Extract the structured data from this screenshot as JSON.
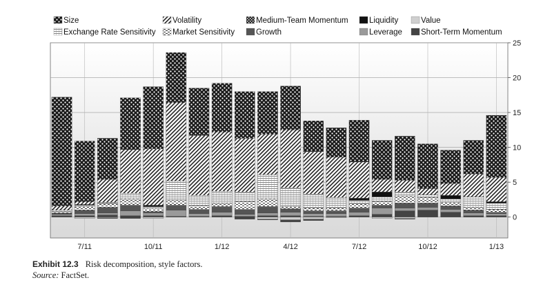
{
  "chart_data": {
    "type": "bar",
    "stacked": true,
    "categories": [
      "Jun 11",
      "Jul 11",
      "Aug 11",
      "Sep 11",
      "Oct 11",
      "Nov 11",
      "Dec 11",
      "Jan 12",
      "Feb 12",
      "Mar 12",
      "Apr 12",
      "May 12",
      "Jun 12",
      "Jul 12",
      "Aug 12",
      "Sep 12",
      "Oct 12",
      "Nov 12",
      "Dec 12",
      "Jan 13"
    ],
    "x_tick_labels": [
      {
        "index": 1,
        "label": "7/11"
      },
      {
        "index": 4,
        "label": "10/11"
      },
      {
        "index": 7,
        "label": "1/12"
      },
      {
        "index": 10,
        "label": "4/12"
      },
      {
        "index": 13,
        "label": "7/12"
      },
      {
        "index": 16,
        "label": "10/12"
      },
      {
        "index": 19,
        "label": "1/13"
      }
    ],
    "ylim": [
      -3,
      25
    ],
    "y_ticks": [
      0,
      5,
      10,
      15,
      20,
      25
    ],
    "y_axis_side": "right",
    "grid": true,
    "legend_position": "top",
    "series": [
      {
        "name": "Size",
        "pattern": "size",
        "values": [
          15.6,
          8.7,
          5.9,
          7.4,
          8.9,
          7.2,
          6.8,
          7.0,
          6.7,
          6.1,
          6.3,
          4.4,
          4.2,
          6.0,
          5.6,
          6.3,
          6.4,
          4.8,
          4.8,
          8.9
        ]
      },
      {
        "name": "Volatility",
        "pattern": "volatility",
        "values": [
          0.6,
          0.4,
          3.3,
          6.3,
          8.1,
          11.2,
          8.6,
          8.5,
          7.7,
          5.8,
          8.3,
          6.1,
          5.8,
          5.2,
          1.8,
          1.7,
          0.9,
          1.7,
          3.3,
          3.5
        ]
      },
      {
        "name": "Medium-Term Momentum",
        "pattern": "medmom",
        "values": [
          0,
          0,
          0,
          0,
          0,
          0,
          0,
          0,
          0,
          0,
          0,
          0,
          0,
          0,
          0,
          0,
          0,
          0,
          0,
          0
        ]
      },
      {
        "name": "Liquidity",
        "pattern": "liquidity",
        "values": [
          0,
          0.1,
          0,
          0,
          0.2,
          0,
          0,
          0,
          0,
          0,
          0,
          0,
          0,
          0.3,
          0.7,
          0,
          0,
          0.5,
          0,
          0.2
        ]
      },
      {
        "name": "Value",
        "pattern": "value",
        "values": [
          0,
          0,
          0,
          0,
          0,
          0,
          0,
          0,
          0,
          0,
          0,
          0,
          0,
          0,
          0,
          0,
          0,
          0,
          0,
          0
        ]
      },
      {
        "name": "Exchange Rate Sensitivity",
        "pattern": "fx",
        "values": [
          0.2,
          0.2,
          0.2,
          0.8,
          0.3,
          2.8,
          1.5,
          1.7,
          1.4,
          3.5,
          2.7,
          2.0,
          1.5,
          0.5,
          0.7,
          0.6,
          0.4,
          0.5,
          1.5,
          0.9
        ]
      },
      {
        "name": "Market Sensitivity",
        "pattern": "mktsens",
        "values": [
          0.2,
          0.5,
          0.5,
          0.9,
          0.4,
          0.7,
          0.5,
          0.5,
          1.1,
          1.1,
          0.3,
          0.4,
          0.4,
          0.6,
          0.5,
          1.0,
          0.8,
          0.5,
          0.4,
          0.4
        ]
      },
      {
        "name": "Growth",
        "pattern": "growth",
        "values": [
          0.2,
          0.5,
          0.8,
          0.8,
          0.2,
          0.7,
          0.6,
          0.8,
          0.7,
          0.9,
          0.5,
          0.4,
          0.4,
          0.6,
          0.4,
          0.7,
          0.6,
          0.5,
          0.4,
          0.2
        ]
      },
      {
        "name": "Leverage",
        "pattern": "leverage",
        "values": [
          0.2,
          0.3,
          0.3,
          0.7,
          0.4,
          0.9,
          0.4,
          0.5,
          0.3,
          0.4,
          0.5,
          0.4,
          0.4,
          0.5,
          0.9,
          0.4,
          0.4,
          0.4,
          0.4,
          0.3
        ]
      },
      {
        "name": "Short-Term Momentum",
        "pattern": "stmom",
        "values": [
          0.2,
          0.2,
          0.3,
          0.2,
          0.2,
          0.1,
          0.1,
          0.2,
          0.1,
          0.2,
          0.2,
          0.1,
          0.1,
          0.2,
          0.4,
          0.9,
          1.0,
          0.7,
          0.2,
          0.2
        ]
      }
    ],
    "negative_series": [
      {
        "name": "Value",
        "pattern": "value",
        "values": [
          0,
          -0.2,
          -0.1,
          0,
          -0.2,
          0,
          0,
          0,
          0,
          -0.3,
          -0.4,
          -0.3,
          -0.1,
          0,
          -0.2,
          -0.2,
          0,
          0,
          0,
          0
        ]
      },
      {
        "name": "Short-Term Momentum",
        "pattern": "stmom",
        "values": [
          0,
          0,
          -0.1,
          -0.2,
          0,
          0,
          0,
          0,
          -0.3,
          -0.1,
          -0.3,
          -0.2,
          0,
          0,
          0,
          -0.1,
          0,
          0,
          0,
          0
        ]
      }
    ]
  },
  "legend": {
    "row1": [
      {
        "name": "Size",
        "pattern": "size"
      },
      {
        "name": "Volatility",
        "pattern": "volatility"
      },
      {
        "name": "Medium-Team Momentum",
        "pattern": "medmom"
      },
      {
        "name": "Liquidity",
        "pattern": "liquidity"
      },
      {
        "name": "Value",
        "pattern": "value"
      }
    ],
    "row2": [
      {
        "name": "Exchange Rate Sensitivity",
        "pattern": "fx"
      },
      {
        "name": "Market Sensitivity",
        "pattern": "mktsens"
      },
      {
        "name": "Growth",
        "pattern": "growth"
      },
      {
        "name": "Leverage",
        "pattern": "leverage"
      },
      {
        "name": "Short-Term Momentum",
        "pattern": "stmom"
      }
    ]
  },
  "caption": {
    "exhibit": "Exhibit 12.3",
    "title": "Risk decomposition, style factors.",
    "source_label": "Source:",
    "source": "FactSet."
  }
}
